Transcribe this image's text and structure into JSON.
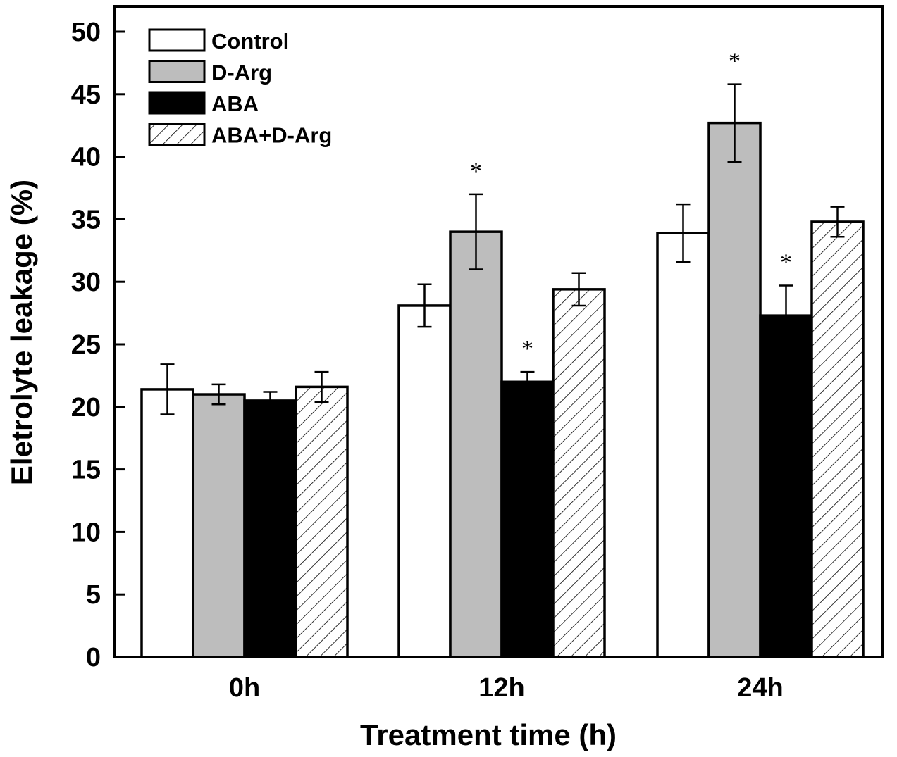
{
  "chart_data": {
    "type": "bar",
    "title": "",
    "xlabel": "Treatment time (h)",
    "ylabel": "Eletrolyte leakage (%)",
    "ylim": [
      0,
      50
    ],
    "yticks": [
      "0",
      "5",
      "10",
      "15",
      "20",
      "25",
      "30",
      "35",
      "40",
      "45",
      "50"
    ],
    "grid": false,
    "legend_position": "top-left",
    "categories": [
      "0h",
      "12h",
      "24h"
    ],
    "series": [
      {
        "name": "Control",
        "fill": "#ffffff",
        "pattern": "none",
        "values": [
          21.4,
          28.1,
          33.9
        ],
        "errors": [
          2.0,
          1.7,
          2.3
        ],
        "significant": [
          false,
          false,
          false
        ]
      },
      {
        "name": "D-Arg",
        "fill": "#bdbdbd",
        "pattern": "none",
        "values": [
          21.0,
          34.0,
          42.7
        ],
        "errors": [
          0.8,
          3.0,
          3.1
        ],
        "significant": [
          false,
          true,
          true
        ]
      },
      {
        "name": "ABA",
        "fill": "#000000",
        "pattern": "none",
        "values": [
          20.5,
          22.0,
          27.3
        ],
        "errors": [
          0.7,
          0.8,
          2.4
        ],
        "significant": [
          false,
          true,
          true
        ]
      },
      {
        "name": "ABA+D-Arg",
        "fill": "#ffffff",
        "pattern": "hatch",
        "values": [
          21.6,
          29.4,
          34.8
        ],
        "errors": [
          1.2,
          1.3,
          1.2
        ],
        "significant": [
          false,
          false,
          false
        ]
      }
    ],
    "significance_marker": "*"
  }
}
